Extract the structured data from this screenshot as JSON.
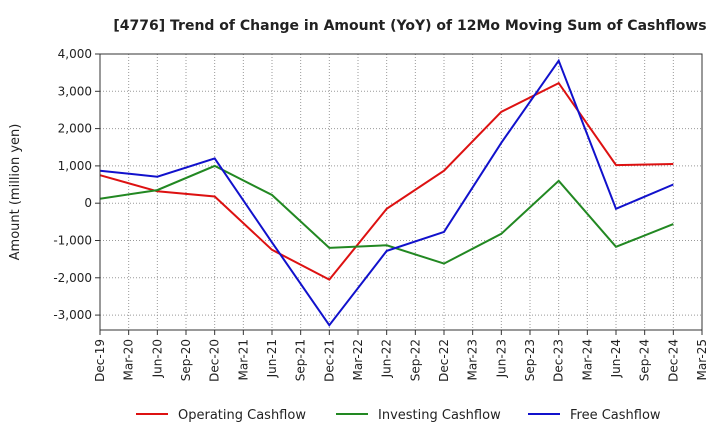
{
  "chart_data": {
    "type": "line",
    "title": "[4776]  Trend of Change in Amount (YoY) of 12Mo Moving Sum of Cashflows",
    "xlabel": "",
    "ylabel": "Amount (million yen)",
    "ylim": [
      -3400,
      4000
    ],
    "yticks": [
      4000,
      3000,
      2000,
      1000,
      0,
      -1000,
      -2000,
      -3000
    ],
    "ytick_labels": [
      "4,000",
      "3,000",
      "2,000",
      "1,000",
      "0",
      "-1,000",
      "-2,000",
      "-3,000"
    ],
    "categories": [
      "Dec-19",
      "Mar-20",
      "Jun-20",
      "Sep-20",
      "Dec-20",
      "Mar-21",
      "Jun-21",
      "Sep-21",
      "Dec-21",
      "Mar-22",
      "Jun-22",
      "Sep-22",
      "Dec-22",
      "Mar-23",
      "Jun-23",
      "Sep-23",
      "Dec-23",
      "Mar-24",
      "Jun-24",
      "Sep-24",
      "Dec-24",
      "Mar-25"
    ],
    "grid": true,
    "legend_position": "bottom",
    "series": [
      {
        "name": "Operating Cashflow",
        "color": "#dd1111",
        "points": [
          [
            0,
            750
          ],
          [
            2,
            320
          ],
          [
            4,
            180
          ],
          [
            6,
            -1250
          ],
          [
            8,
            -2050
          ],
          [
            10,
            -150
          ],
          [
            12,
            870
          ],
          [
            14,
            2450
          ],
          [
            16,
            3220
          ],
          [
            18,
            1020
          ],
          [
            20,
            1050
          ]
        ]
      },
      {
        "name": "Investing Cashflow",
        "color": "#228822",
        "points": [
          [
            0,
            120
          ],
          [
            2,
            350
          ],
          [
            4,
            1000
          ],
          [
            6,
            220
          ],
          [
            8,
            -1200
          ],
          [
            10,
            -1130
          ],
          [
            12,
            -1620
          ],
          [
            14,
            -820
          ],
          [
            16,
            600
          ],
          [
            18,
            -1170
          ],
          [
            20,
            -560
          ]
        ]
      },
      {
        "name": "Free Cashflow",
        "color": "#1111cc",
        "points": [
          [
            0,
            870
          ],
          [
            2,
            710
          ],
          [
            4,
            1200
          ],
          [
            6,
            -1050
          ],
          [
            8,
            -3270
          ],
          [
            10,
            -1280
          ],
          [
            12,
            -770
          ],
          [
            14,
            1620
          ],
          [
            16,
            3820
          ],
          [
            18,
            -150
          ],
          [
            20,
            500
          ]
        ]
      }
    ]
  }
}
